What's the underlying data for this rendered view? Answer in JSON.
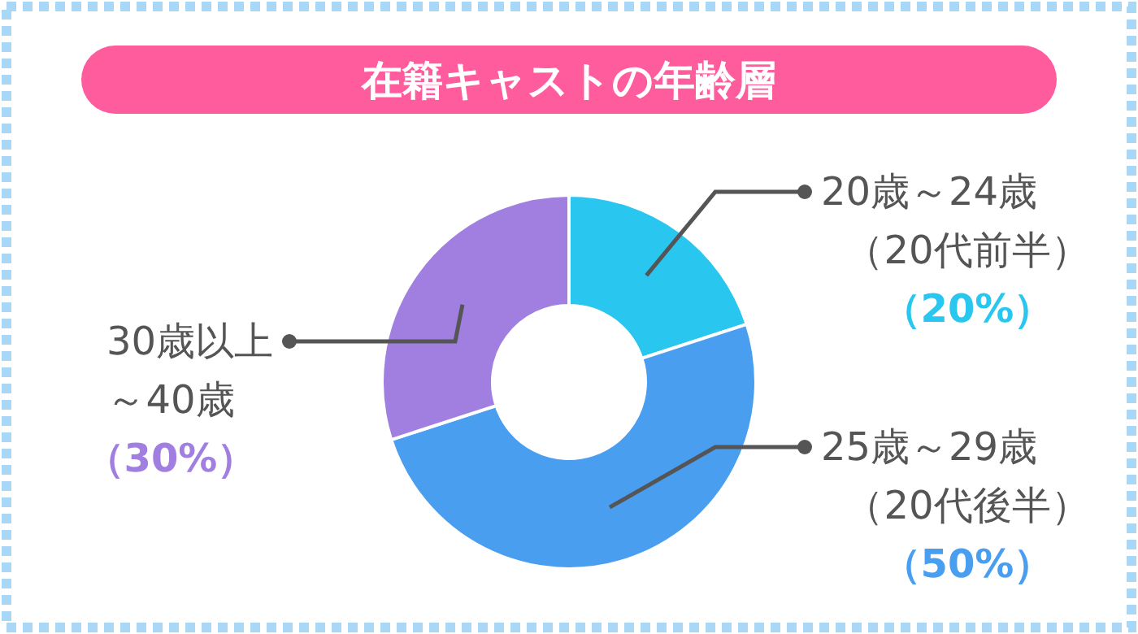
{
  "chart_data": {
    "type": "donut",
    "title": "在籍キャストの年齢層",
    "categories": [
      "20歳～24歳（20代前半）",
      "25歳～29歳（20代後半）",
      "30歳以上～40歳"
    ],
    "values": [
      20,
      50,
      30
    ],
    "colors": [
      "#29c6ef",
      "#4a9ef0",
      "#a07fe0"
    ],
    "value_labels": [
      "（20%）",
      "（50%）",
      "（30%）"
    ]
  }
}
